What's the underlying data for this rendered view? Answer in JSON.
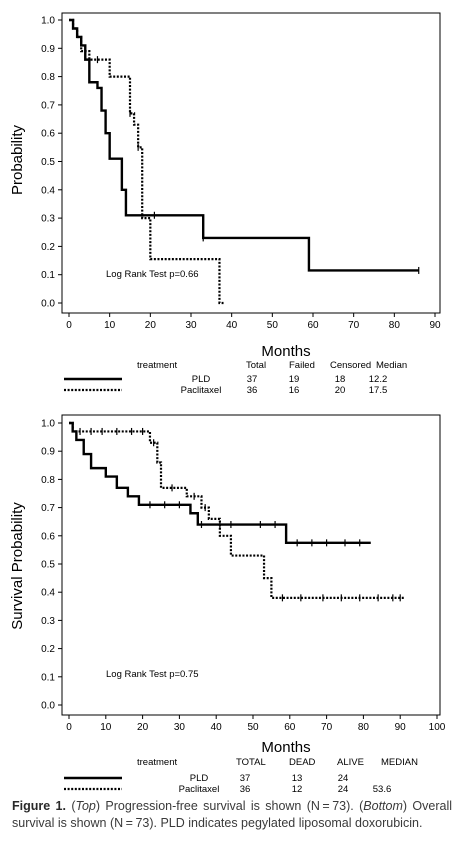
{
  "chart_data": [
    {
      "type": "line",
      "title": "",
      "xlabel": "Months",
      "ylabel": "Probability",
      "xlim": [
        0,
        90
      ],
      "ylim": [
        0.0,
        1.0
      ],
      "xticks": [
        "0",
        "10",
        "20",
        "30",
        "40",
        "50",
        "60",
        "70",
        "80",
        "90"
      ],
      "yticks": [
        "0.0",
        "0.1",
        "0.2",
        "0.3",
        "0.4",
        "0.5",
        "0.6",
        "0.7",
        "0.8",
        "0.9",
        "1.0"
      ],
      "annotation": "Log Rank Test p=0.66",
      "series": [
        {
          "name": "PLD",
          "style": "solid",
          "x": [
            0,
            1,
            2,
            3,
            4,
            5,
            7,
            8,
            9,
            10,
            11,
            13,
            14,
            33,
            59,
            86
          ],
          "y": [
            1.0,
            0.97,
            0.94,
            0.91,
            0.86,
            0.78,
            0.76,
            0.68,
            0.6,
            0.51,
            0.51,
            0.4,
            0.31,
            0.23,
            0.115,
            0.115
          ],
          "censored_x": [
            21,
            33,
            86
          ]
        },
        {
          "name": "Paclitaxel",
          "style": "dotted",
          "x": [
            0,
            1,
            2,
            3,
            5,
            10,
            11,
            15,
            16,
            17,
            18,
            20,
            37,
            38
          ],
          "y": [
            1.0,
            0.97,
            0.94,
            0.89,
            0.86,
            0.8,
            0.8,
            0.67,
            0.63,
            0.55,
            0.3,
            0.155,
            0.0,
            0.0
          ],
          "censored_x": [
            7,
            15,
            17
          ]
        }
      ],
      "table": {
        "headers": [
          "treatment",
          "Total",
          "Failed",
          "Censored",
          "Median"
        ],
        "rows": [
          {
            "label": "PLD",
            "values": [
              "37",
              "19",
              "18",
              "12.2"
            ]
          },
          {
            "label": "Paclitaxel",
            "values": [
              "36",
              "16",
              "20",
              "17.5"
            ]
          }
        ]
      }
    },
    {
      "type": "line",
      "title": "",
      "xlabel": "Months",
      "ylabel": "Survival Probability",
      "xlim": [
        0,
        100
      ],
      "ylim": [
        0.0,
        1.0
      ],
      "xticks": [
        "0",
        "10",
        "20",
        "30",
        "40",
        "50",
        "60",
        "70",
        "80",
        "90",
        "100"
      ],
      "yticks": [
        "0.0",
        "0.1",
        "0.2",
        "0.3",
        "0.4",
        "0.5",
        "0.6",
        "0.7",
        "0.8",
        "0.9",
        "1.0"
      ],
      "annotation": "Log Rank Test p=0.75",
      "series": [
        {
          "name": "PLD",
          "style": "solid",
          "x": [
            0,
            1,
            2,
            4,
            6,
            10,
            13,
            16,
            19,
            33,
            35,
            59,
            82
          ],
          "y": [
            1.0,
            0.97,
            0.94,
            0.89,
            0.84,
            0.81,
            0.77,
            0.74,
            0.71,
            0.68,
            0.64,
            0.575,
            0.575
          ],
          "censored_x": [
            22,
            26,
            30,
            36,
            41,
            44,
            52,
            56,
            62,
            66,
            70,
            75,
            79
          ]
        },
        {
          "name": "Paclitaxel",
          "style": "dotted",
          "x": [
            0,
            1,
            22,
            24,
            25,
            32,
            36,
            38,
            41,
            44,
            53,
            55,
            91
          ],
          "y": [
            1.0,
            0.97,
            0.93,
            0.86,
            0.77,
            0.74,
            0.7,
            0.66,
            0.6,
            0.53,
            0.45,
            0.38,
            0.38
          ],
          "censored_x": [
            3,
            6,
            9,
            13,
            17,
            20,
            23,
            28,
            34,
            37,
            58,
            63,
            69,
            74,
            79,
            84,
            88,
            90
          ]
        }
      ],
      "table": {
        "headers": [
          "treatment",
          "TOTAL",
          "DEAD",
          "ALIVE",
          "MEDIAN"
        ],
        "rows": [
          {
            "label": "PLD",
            "values": [
              "37",
              "13",
              "24",
              ""
            ]
          },
          {
            "label": "Paclitaxel",
            "values": [
              "36",
              "12",
              "24",
              "53.6"
            ]
          }
        ]
      }
    }
  ],
  "caption": {
    "figure_label": "Figure 1.",
    "text_html": " (<i>Top</i>) Progression-free survival is shown (N = 73). (<i>Bottom</i>) Overall survival is shown (N = 73). PLD indicates pegylated liposomal doxorubicin."
  }
}
